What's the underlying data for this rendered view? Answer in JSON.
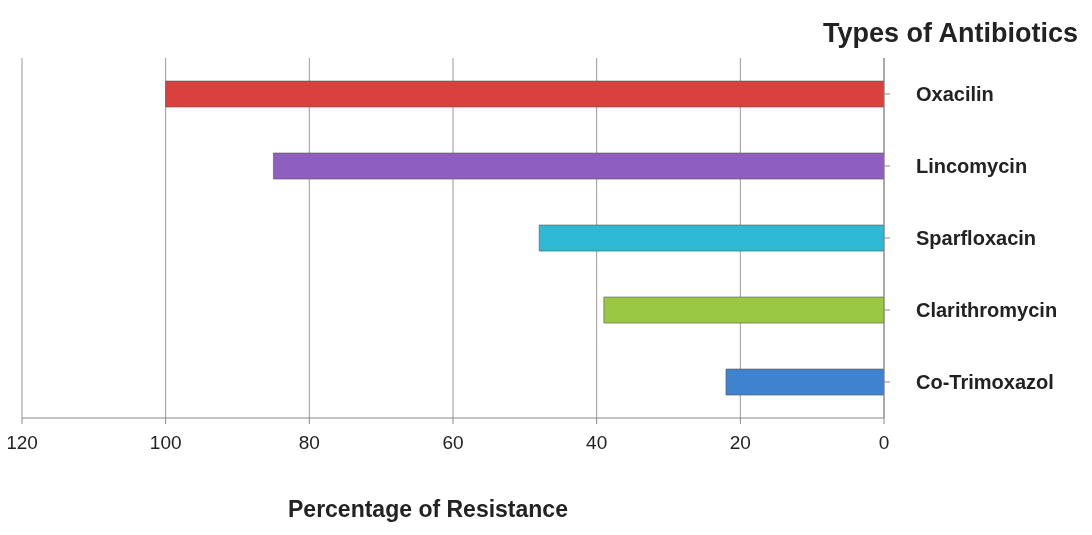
{
  "chart_data": {
    "type": "bar",
    "orientation": "horizontal",
    "ylabel": "Types of Antibiotics",
    "xlabel": "Percentage of Resistance",
    "categories": [
      "Oxacilin",
      "Lincomycin",
      "Sparfloxacin",
      "Clarithromycin",
      "Co-Trimoxazol"
    ],
    "values": [
      100,
      85,
      48,
      39,
      22
    ],
    "colors": [
      "#d9413e",
      "#8e5fbf",
      "#2fb9d4",
      "#9bc842",
      "#3f82cf"
    ],
    "xlim": [
      120,
      0
    ],
    "xticks": [
      120,
      100,
      80,
      60,
      40,
      20,
      0
    ],
    "grid": "x",
    "legend": false
  }
}
